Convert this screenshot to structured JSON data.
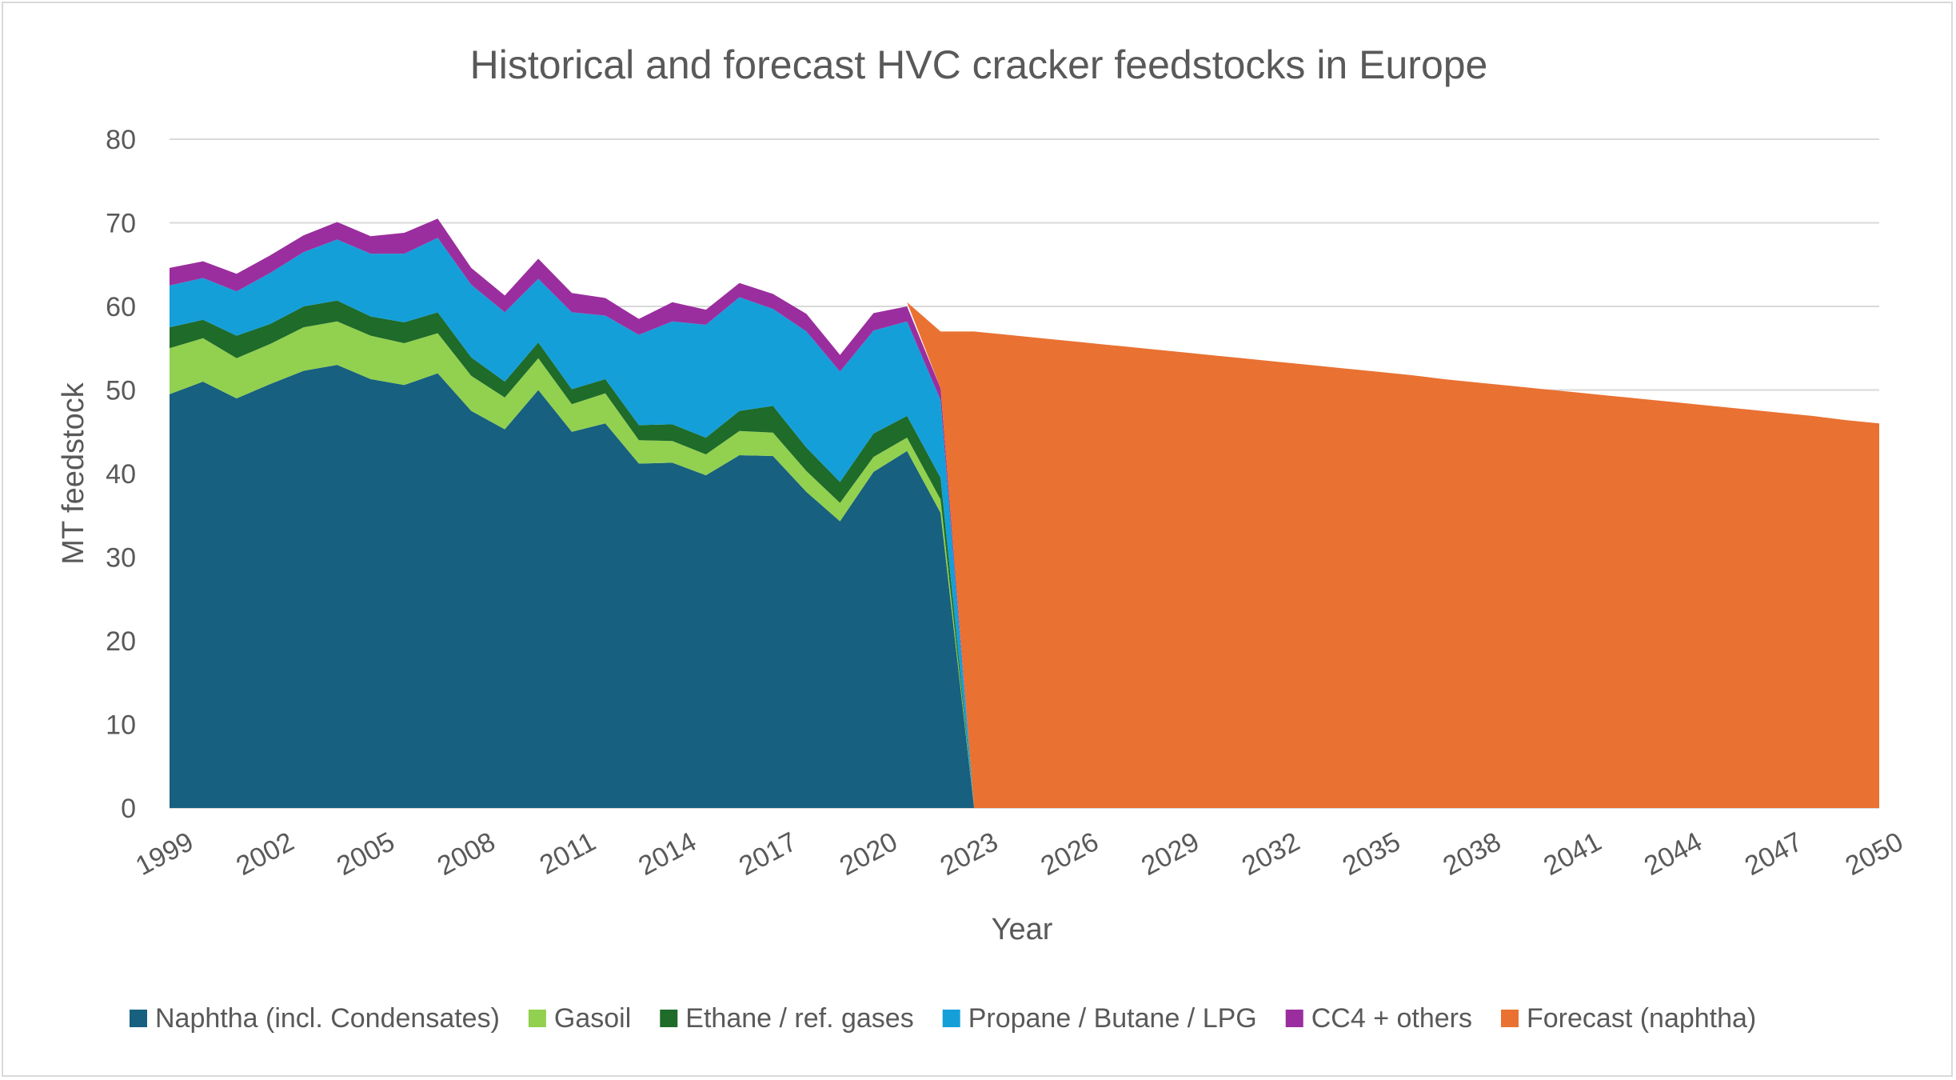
{
  "chart_data": {
    "type": "area",
    "title": "Historical and forecast HVC cracker feedstocks in Europe",
    "xlabel": "Year",
    "ylabel": "MT feedstock",
    "x": [
      1999,
      2000,
      2001,
      2002,
      2003,
      2004,
      2005,
      2006,
      2007,
      2008,
      2009,
      2010,
      2011,
      2012,
      2013,
      2014,
      2015,
      2016,
      2017,
      2018,
      2019,
      2020,
      2021,
      2022,
      2023,
      2024,
      2025,
      2026,
      2027,
      2028,
      2029,
      2030,
      2031,
      2032,
      2033,
      2034,
      2035,
      2036,
      2037,
      2038,
      2039,
      2040,
      2041,
      2042,
      2043,
      2044,
      2045,
      2046,
      2047,
      2048,
      2049,
      2050
    ],
    "x_tick_labels": [
      "1999",
      "2002",
      "2005",
      "2008",
      "2011",
      "2014",
      "2017",
      "2020",
      "2023",
      "2026",
      "2029",
      "2032",
      "2035",
      "2038",
      "2041",
      "2044",
      "2047",
      "2050"
    ],
    "ylim": [
      0,
      80
    ],
    "y_ticks": [
      "0",
      "10",
      "20",
      "30",
      "40",
      "50",
      "60",
      "70",
      "80"
    ],
    "grid": true,
    "legend_position": "bottom",
    "stacked": true,
    "series": [
      {
        "name": "Naphtha (incl. Condensates)",
        "color": "#17607f",
        "values": [
          49.5,
          51,
          49,
          50.7,
          52.3,
          53,
          51.3,
          50.6,
          52,
          47.5,
          45.3,
          50,
          45,
          46,
          41.2,
          41.3,
          39.8,
          42.2,
          42.1,
          37.8,
          34.3,
          40.2,
          42.7,
          35.3,
          0,
          0,
          0,
          0,
          0,
          0,
          0,
          0,
          0,
          0,
          0,
          0,
          0,
          0,
          0,
          0,
          0,
          0,
          0,
          0,
          0,
          0,
          0,
          0,
          0,
          0,
          0,
          0
        ]
      },
      {
        "name": "Gasoil",
        "color": "#92d050",
        "values": [
          5.5,
          5.2,
          4.8,
          4.8,
          5.2,
          5.2,
          5.2,
          5,
          4.8,
          4.2,
          3.8,
          3.8,
          3.3,
          3.6,
          2.8,
          2.6,
          2.5,
          2.9,
          2.8,
          2.5,
          2.2,
          1.8,
          1.6,
          1.6,
          0,
          0,
          0,
          0,
          0,
          0,
          0,
          0,
          0,
          0,
          0,
          0,
          0,
          0,
          0,
          0,
          0,
          0,
          0,
          0,
          0,
          0,
          0,
          0,
          0,
          0,
          0,
          0
        ]
      },
      {
        "name": "Ethane / ref. gases",
        "color": "#1e6b2a",
        "values": [
          2.5,
          2.2,
          2.7,
          2.4,
          2.5,
          2.5,
          2.3,
          2.5,
          2.5,
          2.2,
          1.9,
          1.9,
          1.8,
          1.7,
          1.8,
          2,
          2,
          2.4,
          3.2,
          2.8,
          2.5,
          2.8,
          2.6,
          2.6,
          0,
          0,
          0,
          0,
          0,
          0,
          0,
          0,
          0,
          0,
          0,
          0,
          0,
          0,
          0,
          0,
          0,
          0,
          0,
          0,
          0,
          0,
          0,
          0,
          0,
          0,
          0,
          0
        ]
      },
      {
        "name": "Propane / Butane / LPG",
        "color": "#159fd9",
        "values": [
          5,
          5,
          5.3,
          6.1,
          6.5,
          7.3,
          7.5,
          8.2,
          8.9,
          8.7,
          8.3,
          7.6,
          9.2,
          7.6,
          10.8,
          12.3,
          13.5,
          13.6,
          11.6,
          13.9,
          13.2,
          12.3,
          11.3,
          9.3,
          0,
          0,
          0,
          0,
          0,
          0,
          0,
          0,
          0,
          0,
          0,
          0,
          0,
          0,
          0,
          0,
          0,
          0,
          0,
          0,
          0,
          0,
          0,
          0,
          0,
          0,
          0,
          0
        ]
      },
      {
        "name": "CC4 + others",
        "color": "#9b2e9e",
        "values": [
          2.1,
          2,
          2.1,
          2.1,
          2,
          2.1,
          2.1,
          2.5,
          2.3,
          2,
          2,
          2.4,
          2.3,
          2.1,
          1.9,
          2.3,
          1.8,
          1.7,
          1.8,
          2.1,
          2,
          2.1,
          1.8,
          1.4,
          0,
          0,
          0,
          0,
          0,
          0,
          0,
          0,
          0,
          0,
          0,
          0,
          0,
          0,
          0,
          0,
          0,
          0,
          0,
          0,
          0,
          0,
          0,
          0,
          0,
          0,
          0,
          0
        ]
      },
      {
        "name": "Forecast (naphtha)",
        "color": "#e97132",
        "stack": false,
        "values": [
          null,
          null,
          null,
          null,
          null,
          null,
          null,
          null,
          null,
          null,
          null,
          null,
          null,
          null,
          null,
          null,
          null,
          null,
          null,
          null,
          null,
          null,
          60.5,
          57,
          57,
          56.6,
          56.2,
          55.8,
          55.4,
          55,
          54.6,
          54.2,
          53.8,
          53.4,
          53,
          52.6,
          52.2,
          51.8,
          51.3,
          50.9,
          50.5,
          50.1,
          49.7,
          49.3,
          48.9,
          48.5,
          48.1,
          47.7,
          47.3,
          46.9,
          46.4,
          46
        ]
      }
    ]
  }
}
